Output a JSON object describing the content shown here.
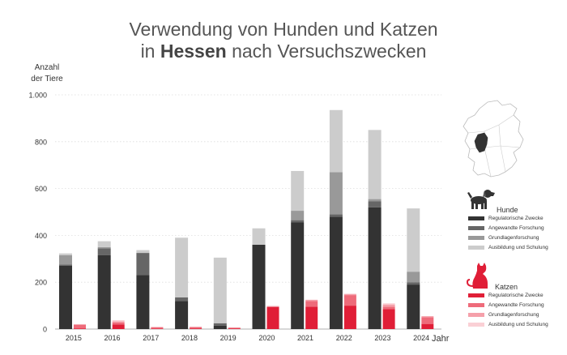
{
  "title_line1": "Verwendung von Hunden und Katzen",
  "title_line2_pre": "in ",
  "title_line2_bold": "Hessen",
  "title_line2_post": " nach Versuchszwecken",
  "ylabel_line1": "Anzahl",
  "ylabel_line2": "der Tiere",
  "xlabel": "Jahr",
  "colors": {
    "hunde": [
      "#333333",
      "#666666",
      "#999999",
      "#cccccc"
    ],
    "katzen": [
      "#e01e37",
      "#ee6b7a",
      "#f5a0aa",
      "#fad0d5"
    ]
  },
  "legend": {
    "hunde": {
      "title": "Hunde",
      "items": [
        "Regulatorische Zwecke",
        "Angewandte Forschung",
        "Grundlagenforschung",
        "Ausbildung und Schulung"
      ]
    },
    "katzen": {
      "title": "Katzen",
      "items": [
        "Regulatorische Zwecke",
        "Angewandte Forschung",
        "Grundlagenforschung",
        "Ausbildung und Schulung"
      ]
    }
  },
  "chart_data": {
    "type": "bar",
    "stacked": true,
    "grouped": true,
    "categories": [
      "2015",
      "2016",
      "2017",
      "2018",
      "2019",
      "2020",
      "2021",
      "2022",
      "2023",
      "2024"
    ],
    "ylim": [
      0,
      1000
    ],
    "yticks": [
      0,
      200,
      400,
      600,
      800,
      1000
    ],
    "ytick_labels": [
      "0",
      "200",
      "400",
      "600",
      "800",
      "1.000"
    ],
    "grid": true,
    "groups": [
      {
        "name": "Hunde",
        "series": [
          {
            "name": "Regulatorische Zwecke",
            "values": [
              270,
              315,
              230,
              120,
              15,
              360,
              455,
              480,
              520,
              190
            ]
          },
          {
            "name": "Angewandte Forschung",
            "values": [
              5,
              30,
              95,
              15,
              10,
              0,
              10,
              10,
              25,
              10
            ]
          },
          {
            "name": "Grundlagenforschung",
            "values": [
              40,
              5,
              0,
              0,
              0,
              0,
              40,
              180,
              10,
              45
            ]
          },
          {
            "name": "Ausbildung und Schulung",
            "values": [
              8,
              25,
              12,
              255,
              280,
              70,
              170,
              265,
              295,
              270
            ]
          }
        ]
      },
      {
        "name": "Katzen",
        "series": [
          {
            "name": "Regulatorische Zwecke",
            "values": [
              3,
              20,
              2,
              3,
              3,
              95,
              95,
              100,
              85,
              22
            ]
          },
          {
            "name": "Angewandte Forschung",
            "values": [
              15,
              8,
              5,
              5,
              3,
              0,
              25,
              45,
              10,
              28
            ]
          },
          {
            "name": "Grundlagenforschung",
            "values": [
              3,
              5,
              2,
              2,
              0,
              0,
              5,
              5,
              10,
              5
            ]
          },
          {
            "name": "Ausbildung und Schulung",
            "values": [
              0,
              5,
              0,
              0,
              0,
              5,
              0,
              0,
              5,
              0
            ]
          }
        ]
      }
    ]
  }
}
